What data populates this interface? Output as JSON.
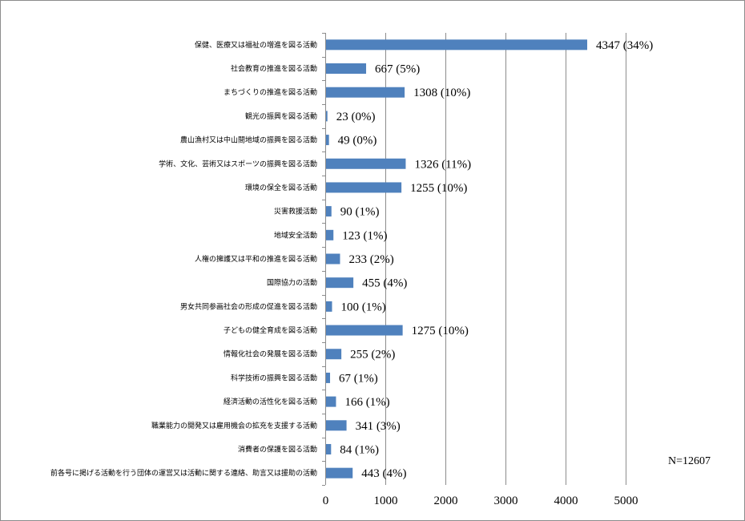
{
  "chart_data": {
    "type": "bar",
    "orientation": "horizontal",
    "categories": [
      "保健、医療又は福祉の増進を図る活動",
      "社会教育の推進を図る活動",
      "まちづくりの推進を図る活動",
      "観光の振興を図る活動",
      "農山漁村又は中山間地域の振興を図る活動",
      "学術、文化、芸術又はスポーツの振興を図る活動",
      "環境の保全を図る活動",
      "災害救援活動",
      "地域安全活動",
      "人権の擁護又は平和の推進を図る活動",
      "国際協力の活動",
      "男女共同参画社会の形成の促進を図る活動",
      "子どもの健全育成を図る活動",
      "情報化社会の発展を図る活動",
      "科学技術の振興を図る活動",
      "経済活動の活性化を図る活動",
      "職業能力の開発又は雇用機会の拡充を支援する活動",
      "消費者の保護を図る活動",
      "前各号に掲げる活動を行う団体の運営又は活動に関する連絡、助言又は援助の活動"
    ],
    "values": [
      4347,
      667,
      1308,
      23,
      49,
      1326,
      1255,
      90,
      123,
      233,
      455,
      100,
      1275,
      255,
      67,
      166,
      341,
      84,
      443
    ],
    "data_labels": [
      "4347 (34%)",
      "667 (5%)",
      "1308 (10%)",
      "23 (0%)",
      "49 (0%)",
      "1326 (11%)",
      "1255 (10%)",
      "90 (1%)",
      "123 (1%)",
      "233 (2%)",
      "455 (4%)",
      "100 (1%)",
      "1275 (10%)",
      "255 (2%)",
      "67 (1%)",
      "166 (1%)",
      "341 (3%)",
      "84 (1%)",
      "443 (4%)"
    ],
    "xlim": [
      0,
      5000
    ],
    "xticks": [
      0,
      1000,
      2000,
      3000,
      4000,
      5000
    ],
    "grid": true,
    "bar_color": "#4f81bd",
    "annotation": "N=12607"
  }
}
